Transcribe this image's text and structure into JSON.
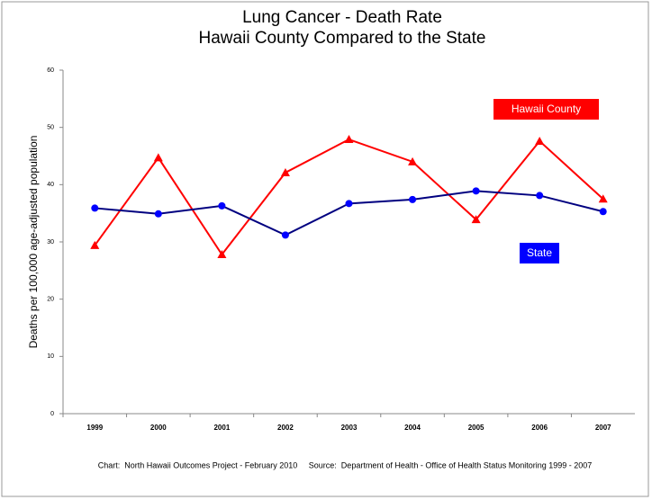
{
  "chart_data": {
    "type": "line",
    "title": "Lung Cancer - Death Rate",
    "subtitle": "Hawaii County Compared to the State",
    "y_label": "Deaths per 100,000 age-adjusted population",
    "footnote": "Chart:  North Hawaii Outcomes Project - February 2010     Source:  Department of Health - Office of Health Status Monitoring 1999 - 2007",
    "categories": [
      "1999",
      "2000",
      "2001",
      "2002",
      "2003",
      "2004",
      "2005",
      "2006",
      "2007"
    ],
    "series": [
      {
        "name": "Hawaii County",
        "color": "#ff0000",
        "marker_color": "#ff0000",
        "marker": "triangle",
        "values": [
          29.4,
          44.7,
          27.8,
          42.1,
          47.9,
          44.0,
          33.9,
          47.6,
          37.5
        ]
      },
      {
        "name": "State",
        "color": "#000080",
        "marker_color": "#0000ff",
        "marker": "circle",
        "values": [
          35.9,
          34.9,
          36.3,
          31.2,
          36.7,
          37.4,
          38.9,
          38.1,
          35.3
        ]
      }
    ],
    "ylim": [
      0,
      60
    ],
    "yticks": [
      0,
      10,
      20,
      30,
      40,
      50,
      60
    ],
    "grid": false
  }
}
